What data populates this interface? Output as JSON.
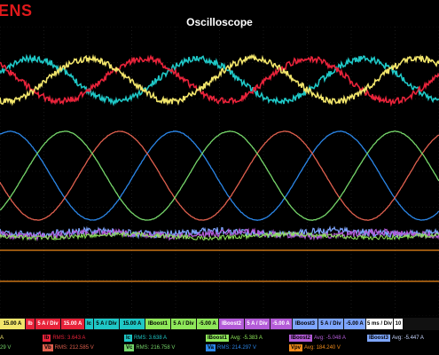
{
  "app": {
    "brand": "ENS",
    "title": "Oscilloscope"
  },
  "colors": {
    "background": "#000000",
    "grid": "#2a2a2a",
    "ia": "#f2e56b",
    "ib": "#e8233a",
    "ic": "#1fc7c6",
    "va": "#76d66a",
    "vb": "#e0604e",
    "vc": "#2b86e8",
    "iboost1": "#8fe85a",
    "iboost2": "#b45cd8",
    "iboost3": "#7ea6ff",
    "vpv": "#ef8a1a"
  },
  "channel_bar": [
    {
      "id": "ch-ia-scale",
      "text": "15.00 A",
      "bg": "#f2e56b",
      "fg": "#000"
    },
    {
      "id": "ch-ib",
      "text": "Ib",
      "bg": "#e8233a",
      "fg": "#fff"
    },
    {
      "id": "ch-ib-scale",
      "text": "5 A / Div",
      "bg": "#e8233a",
      "fg": "#fff"
    },
    {
      "id": "ch-ib-offset",
      "text": "15.00 A",
      "bg": "#e8233a",
      "fg": "#fff"
    },
    {
      "id": "ch-ic",
      "text": "Ic",
      "bg": "#1fc7c6",
      "fg": "#000"
    },
    {
      "id": "ch-ic-scale",
      "text": "5 A / Div",
      "bg": "#1fc7c6",
      "fg": "#000"
    },
    {
      "id": "ch-ic-offset",
      "text": "15.00 A",
      "bg": "#1fc7c6",
      "fg": "#000"
    },
    {
      "id": "ch-iboost1",
      "text": "IBoost1",
      "bg": "#8fe85a",
      "fg": "#000"
    },
    {
      "id": "ch-iboost1-scale",
      "text": "5 A / Div",
      "bg": "#8fe85a",
      "fg": "#000"
    },
    {
      "id": "ch-iboost1-offset",
      "text": "-5.00 A",
      "bg": "#8fe85a",
      "fg": "#000"
    },
    {
      "id": "ch-iboost2",
      "text": "IBoost2",
      "bg": "#b45cd8",
      "fg": "#fff"
    },
    {
      "id": "ch-iboost2-scale",
      "text": "5 A / Div",
      "bg": "#b45cd8",
      "fg": "#fff"
    },
    {
      "id": "ch-iboost2-offset",
      "text": "-5.00 A",
      "bg": "#b45cd8",
      "fg": "#fff"
    },
    {
      "id": "ch-iboost3",
      "text": "IBoost3",
      "bg": "#7ea6ff",
      "fg": "#000"
    },
    {
      "id": "ch-iboost3-scale",
      "text": "5 A / Div",
      "bg": "#7ea6ff",
      "fg": "#000"
    },
    {
      "id": "ch-iboost3-offset",
      "text": "-5.00 A",
      "bg": "#7ea6ff",
      "fg": "#000"
    },
    {
      "id": "timebase",
      "text": "5 ms / Div",
      "bg": "#ffffff",
      "fg": "#000"
    },
    {
      "id": "timebase-offset",
      "text": "10",
      "bg": "#ffffff",
      "fg": "#000"
    }
  ],
  "measurements": {
    "row1": [
      {
        "id": "meas-ia",
        "tag": "",
        "tag_bg": "#f2e56b",
        "text": "A",
        "color": "#f2e56b"
      },
      {
        "id": "meas-ib",
        "tag": "Ib",
        "tag_bg": "#e8233a",
        "text": "RMS: 3.643 A",
        "color": "#e8233a"
      },
      {
        "id": "meas-ic",
        "tag": "Ic",
        "tag_bg": "#1fc7c6",
        "text": "RMS: 3.638 A",
        "color": "#1fc7c6"
      },
      {
        "id": "meas-iboost1",
        "tag": "IBoost1",
        "tag_bg": "#8fe85a",
        "text": "Avg: -5.383 A",
        "color": "#8fe85a"
      },
      {
        "id": "meas-iboost2",
        "tag": "IBoost2",
        "tag_bg": "#b45cd8",
        "text": "Avg: -5.048 A",
        "color": "#b45cd8"
      },
      {
        "id": "meas-iboost3",
        "tag": "IBoost3",
        "tag_bg": "#7ea6ff",
        "text": "Avg: -5.447 A",
        "color": "#c8d6ff"
      }
    ],
    "row2": [
      {
        "id": "meas-va",
        "tag": "",
        "tag_bg": "#76d66a",
        "text": "29 V",
        "color": "#76d66a"
      },
      {
        "id": "meas-vb",
        "tag": "Vb",
        "tag_bg": "#e0604e",
        "text": "RMS: 212.585 V",
        "color": "#e0604e"
      },
      {
        "id": "meas-vc",
        "tag": "Vc",
        "tag_bg": "#76d66a",
        "text": "RMS: 216.758 V",
        "color": "#76d66a"
      },
      {
        "id": "meas-va2",
        "tag": "Va",
        "tag_bg": "#2b86e8",
        "text": "RMS: 214.297 V",
        "color": "#2b86e8"
      },
      {
        "id": "meas-vpv",
        "tag": "Vpv",
        "tag_bg": "#ef8a1a",
        "text": "Avg: 184.240 V",
        "color": "#ef8a1a"
      }
    ]
  }
}
